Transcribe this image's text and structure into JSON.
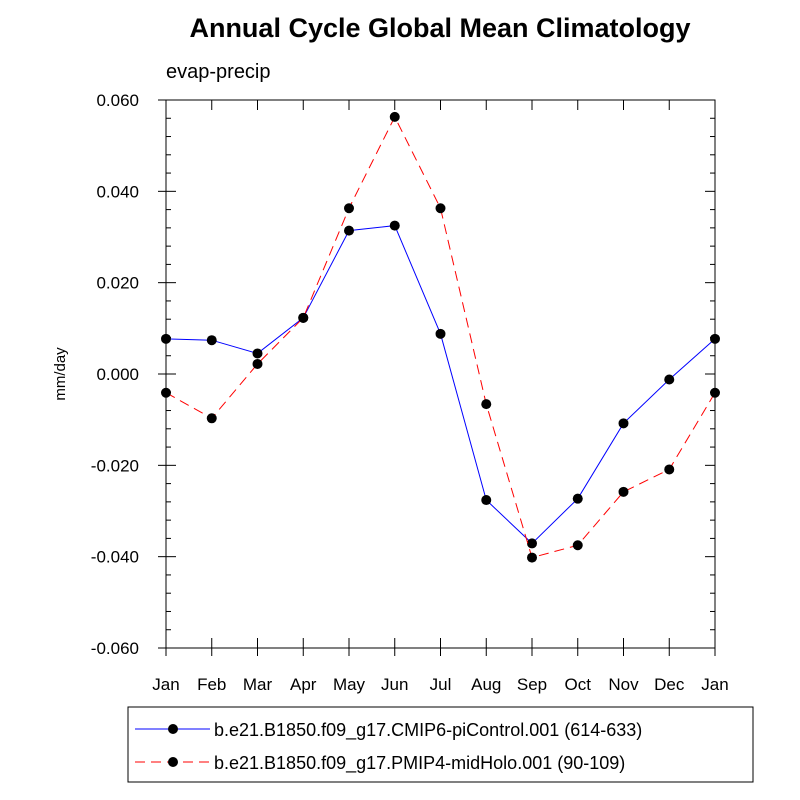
{
  "chart_data": {
    "type": "line",
    "title": "Annual Cycle Global Mean Climatology",
    "subtitle": "evap-precip",
    "xlabel": "",
    "ylabel": "mm/day",
    "categories": [
      "Jan",
      "Feb",
      "Mar",
      "Apr",
      "May",
      "Jun",
      "Jul",
      "Aug",
      "Sep",
      "Oct",
      "Nov",
      "Dec",
      "Jan"
    ],
    "ylim": [
      -0.06,
      0.06
    ],
    "yticks": [
      "0.060",
      "0.040",
      "0.020",
      "0.000",
      "-0.020",
      "-0.040",
      "-0.060"
    ],
    "ytick_values": [
      0.06,
      0.04,
      0.02,
      0.0,
      -0.02,
      -0.04,
      -0.06
    ],
    "grid": false,
    "legend_position": "bottom",
    "series": [
      {
        "name": "b.e21.B1850.f09_g17.CMIP6-piControl.001 (614-633)",
        "color": "#0000ff",
        "dash": "solid",
        "values": [
          0.0077,
          0.0074,
          0.0045,
          0.0123,
          0.0314,
          0.0325,
          0.0088,
          -0.0276,
          -0.0371,
          -0.0273,
          -0.0108,
          -0.0012,
          0.0077
        ]
      },
      {
        "name": "b.e21.B1850.f09_g17.PMIP4-midHolo.001 (90-109)",
        "color": "#ff0000",
        "dash": "dashed",
        "values": [
          -0.0041,
          -0.0097,
          0.0022,
          0.0123,
          0.0363,
          0.0563,
          0.0363,
          -0.0066,
          -0.0402,
          -0.0375,
          -0.0258,
          -0.0209,
          -0.0041
        ]
      }
    ]
  }
}
